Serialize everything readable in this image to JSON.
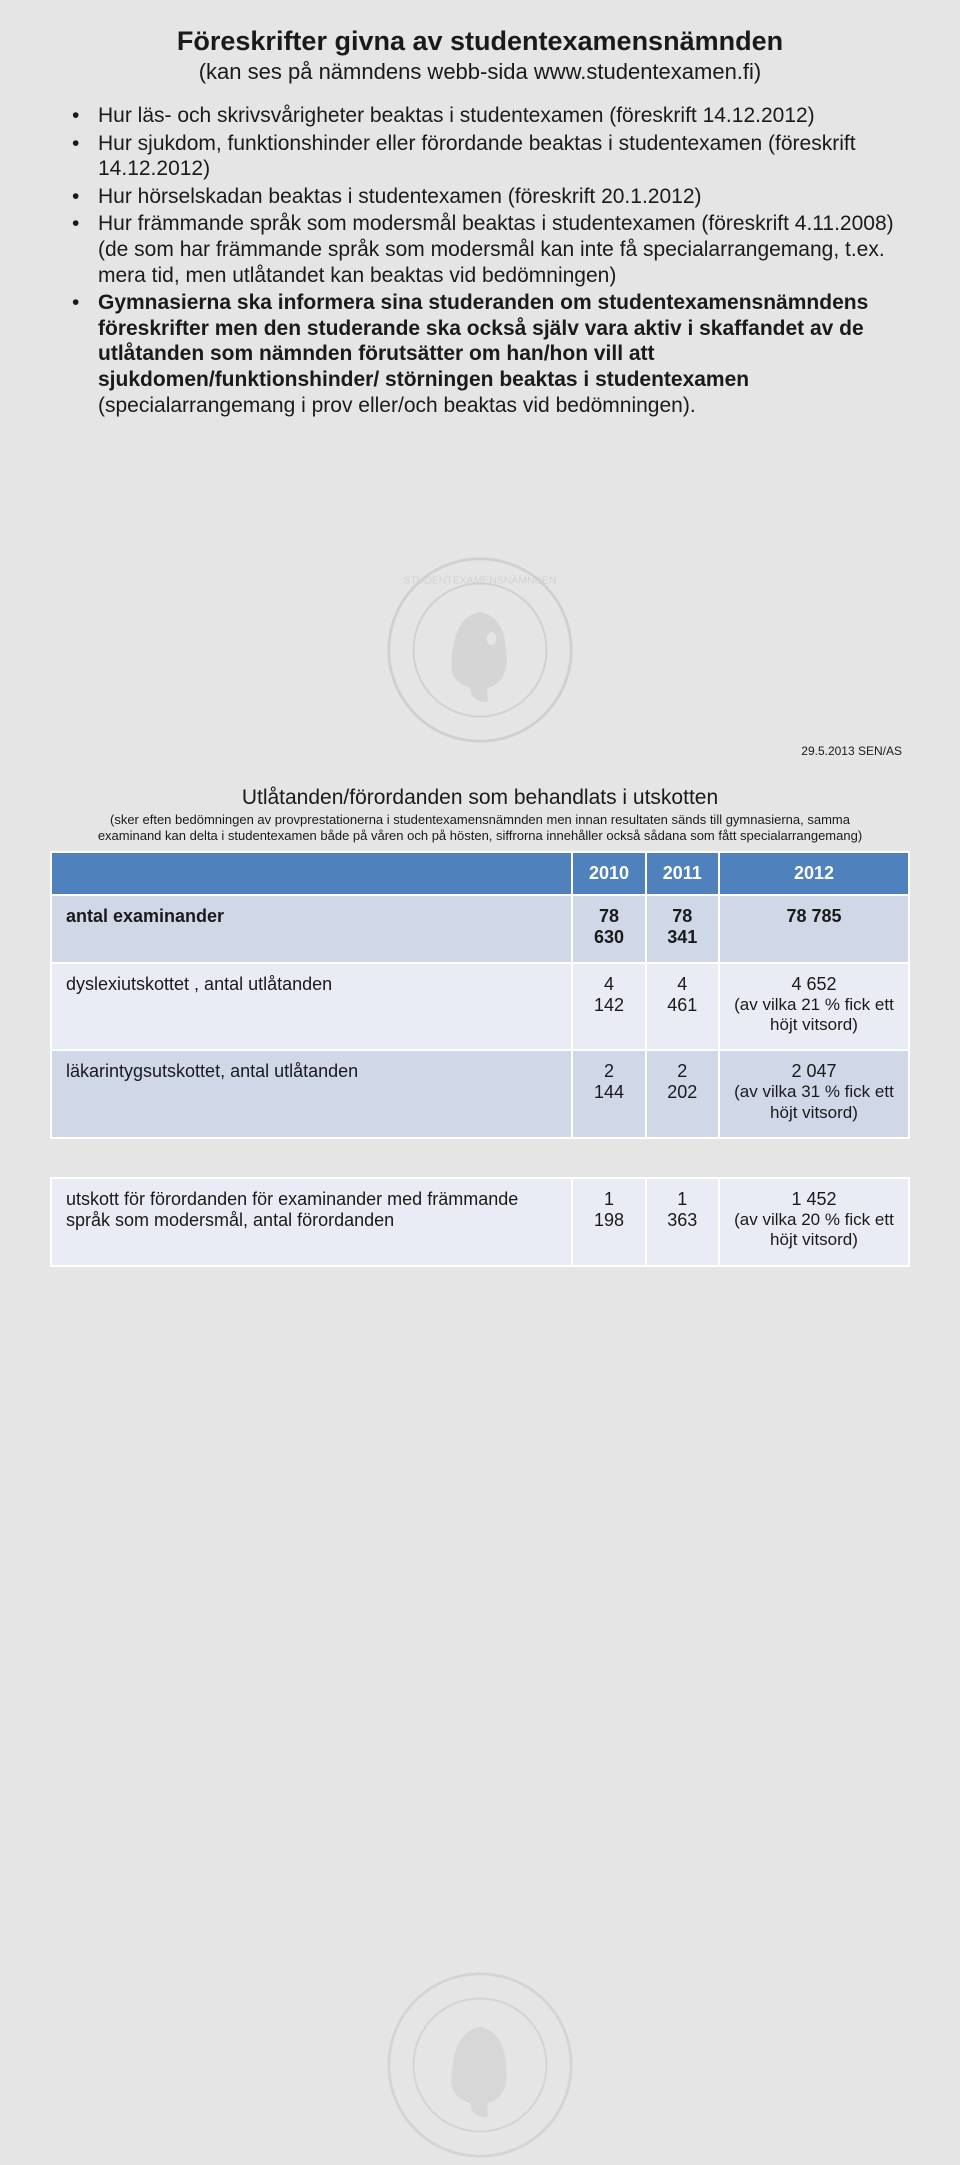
{
  "slide1": {
    "title": "Föreskrifter givna av studentexamensnämnden",
    "subtitle": "(kan ses på nämndens webb-sida www.studentexamen.fi)",
    "bullets": [
      {
        "text": "Hur läs- och skrivsvårigheter beaktas i studentexamen (föreskrift 14.12.2012)"
      },
      {
        "text": " Hur sjukdom, funktionshinder eller förordande beaktas i studentexamen (föreskrift 14.12.2012)"
      },
      {
        "text": "Hur hörselskadan beaktas i studentexamen (föreskrift 20.1.2012)"
      },
      {
        "text": "Hur främmande språk som modersmål beaktas i studentexamen (föreskrift 4.11.2008)",
        "paren": "(de som har främmande språk som modersmål kan inte få specialarrangemang, t.ex. mera tid, men utlåtandet kan beaktas vid bedömningen)"
      },
      {
        "bold": true,
        "text": "Gymnasierna ska informera sina studeranden om studentexamensnämndens föreskrifter men den studerande ska också själv vara aktiv i skaffandet av de utlåtanden som nämnden förutsätter om han/hon vill att sjukdomen/funktionshinder/ störningen beaktas i studentexamen",
        "tail": " (specialarrangemang i prov eller/och beaktas vid bedömningen)."
      }
    ]
  },
  "slide2": {
    "date": "29.5.2013 SEN/AS",
    "title": "Utlåtanden/förordanden som behandlats i utskotten",
    "sub": "(sker eften bedömningen av provprestationerna i studentexamensnämnden men innan resultaten sänds till gymnasierna, samma examinand kan delta i studentexamen både på våren och på hösten, siffrorna innehåller också sådana som fått specialarrangemang)",
    "table": {
      "header_color": "#4f81bd",
      "header_text_color": "#ffffff",
      "row_even_bg": "#d0d8e8",
      "row_odd_bg": "#e9ecf4",
      "years": [
        "2010",
        "2011",
        "2012"
      ],
      "rows": [
        {
          "label": "antal examinander",
          "bold": true,
          "cls": "r-head",
          "c": [
            "78 630",
            "78 341",
            "78 785"
          ]
        },
        {
          "label": "dyslexiutskottet , antal utlåtanden",
          "cls": "r-odd",
          "c": [
            "4 142",
            "4 461",
            "4 652"
          ],
          "note3": "(av vilka 21 % fick ett höjt vitsord)"
        },
        {
          "label": "läkarintygsutskottet, antal utlåtanden",
          "cls": "r-even",
          "c": [
            "2 144",
            "2 202",
            "2 047"
          ],
          "note3": "(av vilka 31 % fick ett höjt vitsord)"
        },
        {
          "spacer": true
        },
        {
          "label": "utskott för förordanden för examinander med främmande språk som modersmål, antal förordanden",
          "cls": "r-odd",
          "c": [
            "1 198",
            "1 363",
            "1 452"
          ],
          "note3": "(av vilka 20 % fick ett höjt vitsord)"
        }
      ]
    }
  }
}
